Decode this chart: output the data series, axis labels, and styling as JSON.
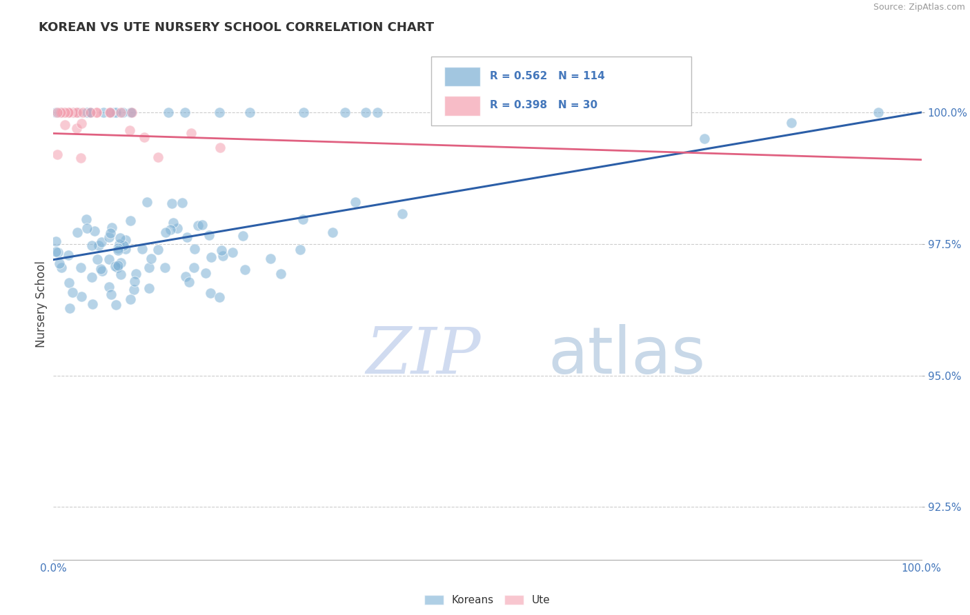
{
  "title": "KOREAN VS UTE NURSERY SCHOOL CORRELATION CHART",
  "source_text": "Source: ZipAtlas.com",
  "ylabel": "Nursery School",
  "xlim": [
    0.0,
    100.0
  ],
  "ylim": [
    91.5,
    101.2
  ],
  "yticks": [
    92.5,
    95.0,
    97.5,
    100.0
  ],
  "xticks": [
    0.0,
    100.0
  ],
  "korean_R": 0.562,
  "korean_N": 114,
  "ute_R": 0.398,
  "ute_N": 30,
  "blue_color": "#7BAFD4",
  "pink_color": "#F4A0B0",
  "blue_line_color": "#2B5EA7",
  "pink_line_color": "#E06080",
  "axis_tick_color": "#4477BB",
  "watermark_zip_color": "#D0DBF0",
  "watermark_atlas_color": "#C8D8E8",
  "grid_color": "#CCCCCC",
  "title_color": "#333333",
  "korean_trend_start": 97.2,
  "korean_trend_end": 100.0,
  "ute_trend_start": 99.6,
  "ute_trend_end": 99.1
}
